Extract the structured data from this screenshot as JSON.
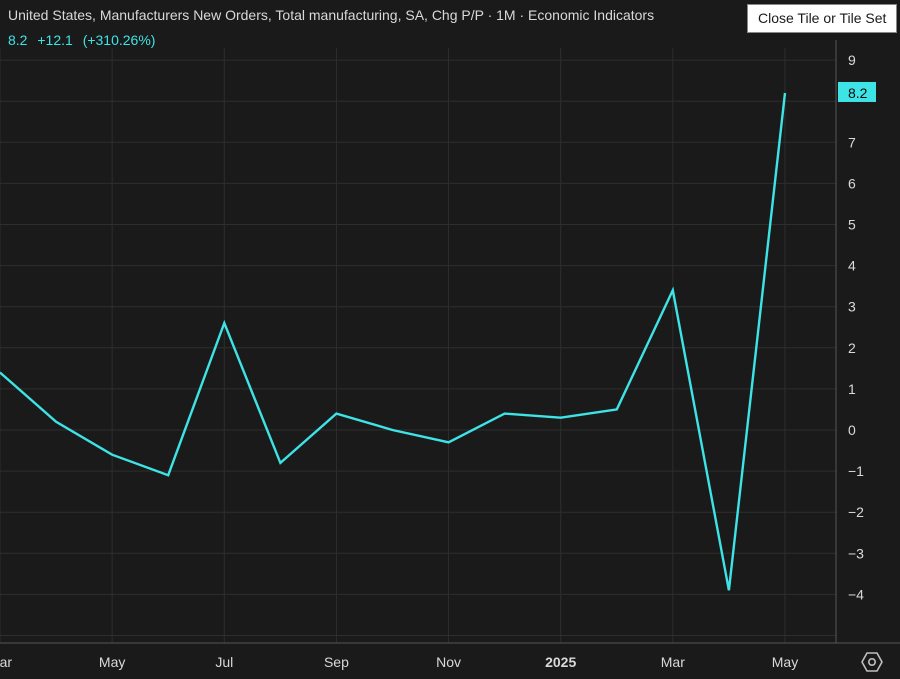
{
  "header": {
    "title": "United States, Manufacturers New Orders, Total manufacturing, SA, Chg P/P · 1M · Economic Indicators",
    "last_value": "8.2",
    "change": "+12.1",
    "change_pct": "(+310.26%)"
  },
  "tooltip": {
    "text": "Close Tile or Tile Set"
  },
  "colors": {
    "background": "#1a1a1a",
    "line": "#3ee3e6",
    "grid": "#2e2e2e",
    "text": "#d9d9d9"
  },
  "icons": {
    "settings": "settings-gear-icon"
  },
  "chart_data": {
    "type": "line",
    "x": [
      "2024-03",
      "2024-04",
      "2024-05",
      "2024-06",
      "2024-07",
      "2024-08",
      "2024-09",
      "2024-10",
      "2024-11",
      "2024-12",
      "2025-01",
      "2025-02",
      "2025-03",
      "2025-04",
      "2025-05"
    ],
    "series": [
      {
        "values": [
          1.4,
          0.2,
          -0.6,
          -1.1,
          2.6,
          -0.8,
          0.4,
          0.0,
          -0.3,
          0.4,
          0.3,
          0.5,
          3.4,
          -3.9,
          8.2
        ]
      }
    ],
    "x_tick_labels": [
      "Mar",
      "May",
      "Jul",
      "Sep",
      "Nov",
      "2025",
      "Mar",
      "May"
    ],
    "x_tick_months": [
      "2024-03",
      "2024-05",
      "2024-07",
      "2024-09",
      "2024-11",
      "2025-01",
      "2025-03",
      "2025-05"
    ],
    "y_ticks": [
      9,
      7,
      6,
      5,
      4,
      3,
      2,
      1,
      0,
      -1,
      -2,
      -3,
      -4
    ],
    "y_tick_labels": [
      "9",
      "7",
      "6",
      "5",
      "4",
      "3",
      "2",
      "1",
      "0",
      "−1",
      "−2",
      "−3",
      "−4"
    ],
    "ylim": [
      -5,
      9.4
    ],
    "grid": true,
    "last_value_label": "8.2"
  }
}
